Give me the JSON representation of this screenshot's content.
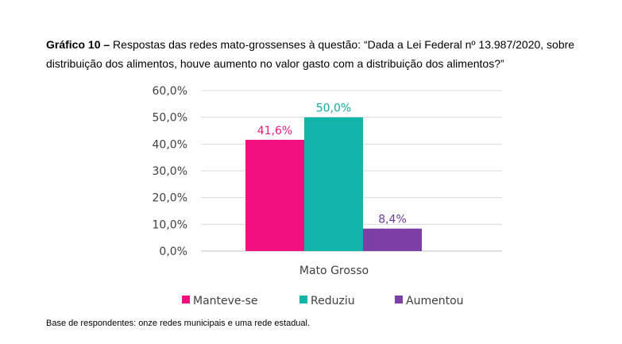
{
  "title": {
    "bold": "Gráfico 10 –",
    "text": " Respostas das redes mato-grossenses à questão: “Dada a Lei Federal nº 13.987/2020, sobre distribuição dos alimentos, houve aumento no valor gasto com a distribuição dos alimentos?”"
  },
  "chart_data": {
    "type": "bar",
    "categories": [
      "Mato Grosso"
    ],
    "series": [
      {
        "name": "Manteve-se",
        "values": [
          41.6
        ],
        "label": "41,6%",
        "color": "#f0117f",
        "label_color": "#e6197f"
      },
      {
        "name": "Reduziu",
        "values": [
          50.0
        ],
        "label": "50,0%",
        "color": "#12b3a8",
        "label_color": "#12a9a0"
      },
      {
        "name": "Aumentou",
        "values": [
          8.4
        ],
        "label": "8,4%",
        "color": "#7b3fa5",
        "label_color": "#6a3a9a"
      }
    ],
    "ylim": [
      0,
      60
    ],
    "yticks": [
      {
        "value": 0,
        "label": "0,0%"
      },
      {
        "value": 10,
        "label": "10,0%"
      },
      {
        "value": 20,
        "label": "20,0%"
      },
      {
        "value": 30,
        "label": "30,0%"
      },
      {
        "value": 40,
        "label": "40,0%"
      },
      {
        "value": 50,
        "label": "50,0%"
      },
      {
        "value": 60,
        "label": "60,0%"
      }
    ],
    "grid": true,
    "legend": "bottom"
  },
  "footnote": "Base de respondentes: onze redes municipais e uma rede estadual."
}
